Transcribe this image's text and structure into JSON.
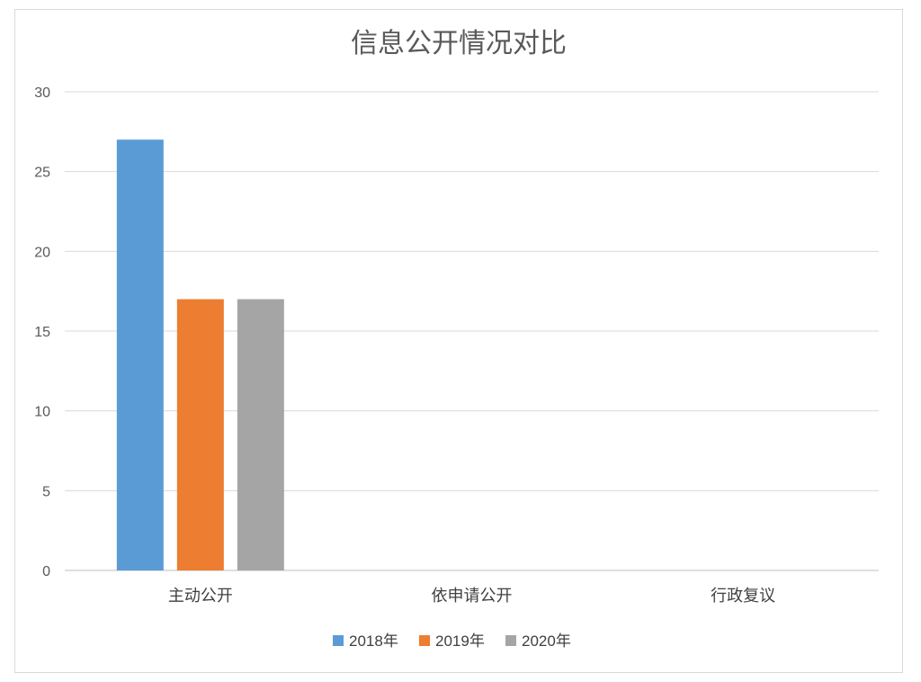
{
  "chart_data": {
    "type": "bar",
    "title": "信息公开情况对比",
    "xlabel": "",
    "ylabel": "",
    "categories": [
      "主动公开",
      "依申请公开",
      "行政复议"
    ],
    "series": [
      {
        "name": "2018年",
        "values": [
          27,
          0,
          0
        ],
        "color": "#5b9bd5"
      },
      {
        "name": "2019年",
        "values": [
          17,
          0,
          0
        ],
        "color": "#ed7d31"
      },
      {
        "name": "2020年",
        "values": [
          17,
          0,
          0
        ],
        "color": "#a5a5a5"
      }
    ],
    "ylim": [
      0,
      30
    ],
    "yticks": [
      0,
      5,
      10,
      15,
      20,
      25,
      30
    ],
    "grid": true,
    "legend_position": "bottom"
  }
}
